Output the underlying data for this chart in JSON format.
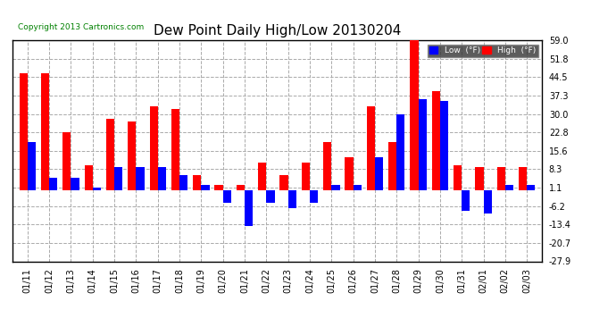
{
  "title": "Dew Point Daily High/Low 20130204",
  "copyright": "Copyright 2013 Cartronics.com",
  "dates": [
    "01/11",
    "01/12",
    "01/13",
    "01/14",
    "01/15",
    "01/16",
    "01/17",
    "01/18",
    "01/19",
    "01/20",
    "01/21",
    "01/22",
    "01/23",
    "01/24",
    "01/25",
    "01/26",
    "01/27",
    "01/28",
    "01/29",
    "01/30",
    "01/31",
    "02/01",
    "02/02",
    "02/03"
  ],
  "high": [
    46,
    46,
    23,
    10,
    28,
    27,
    33,
    32,
    6,
    2,
    2,
    11,
    6,
    11,
    19,
    13,
    33,
    19,
    60,
    39,
    10,
    9,
    9,
    9
  ],
  "low": [
    19,
    5,
    5,
    1,
    9,
    9,
    9,
    6,
    2,
    -5,
    -14,
    -5,
    -7,
    -5,
    2,
    2,
    13,
    30,
    36,
    35,
    -8,
    -9,
    2,
    2
  ],
  "ylim": [
    -27.9,
    59.0
  ],
  "yticks": [
    -27.9,
    -20.7,
    -13.4,
    -6.2,
    1.1,
    8.3,
    15.6,
    22.8,
    30.0,
    37.3,
    44.5,
    51.8,
    59.0
  ],
  "bar_width": 0.38,
  "high_color": "#ff0000",
  "low_color": "#0000ff",
  "bg_color": "#ffffff",
  "grid_color": "#aaaaaa",
  "title_fontsize": 11,
  "tick_fontsize": 7,
  "frame_color": "#000000"
}
